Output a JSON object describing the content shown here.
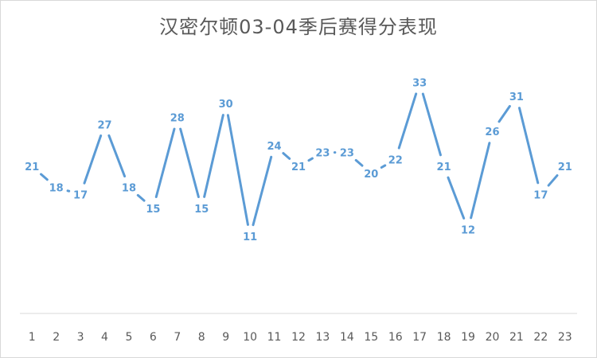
{
  "chart_data": {
    "type": "line",
    "title": "汉密尔顿03-04季后赛得分表现",
    "xlabel": "",
    "ylabel": "",
    "categories": [
      "1",
      "2",
      "3",
      "4",
      "5",
      "6",
      "7",
      "8",
      "9",
      "10",
      "11",
      "12",
      "13",
      "14",
      "15",
      "16",
      "17",
      "18",
      "19",
      "20",
      "21",
      "22",
      "23"
    ],
    "values": [
      21,
      18,
      17,
      27,
      18,
      15,
      28,
      15,
      30,
      11,
      24,
      21,
      23,
      23,
      20,
      22,
      33,
      21,
      12,
      26,
      31,
      17,
      21
    ],
    "ylim": [
      0,
      40
    ],
    "grid": false,
    "legend": "none",
    "line_color": "#5b9bd5",
    "axis_color": "#d9d9d9"
  }
}
